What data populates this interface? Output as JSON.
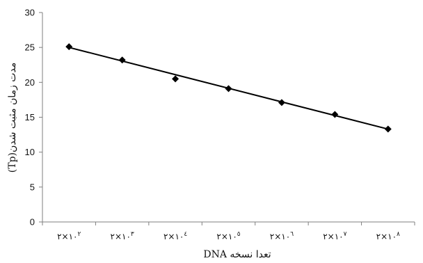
{
  "chart_data": {
    "type": "scatter",
    "xlabel": "تعدا نسخه DNA",
    "ylabel": "مدت زمان مثبت شدن(Tp)",
    "categories": [
      "۲×۱۰۲",
      "۲×۱۰۳",
      "۲×۱۰۴",
      "۲×۱۰۵",
      "۲×۱۰۶",
      "۲×۱۰۷",
      "۲×۱۰۸"
    ],
    "category_labels": [
      {
        "base": "۲×۱۰",
        "exp": "۲"
      },
      {
        "base": "۲×۱۰",
        "exp": "۳"
      },
      {
        "base": "۲×۱۰",
        "exp": "٤"
      },
      {
        "base": "۲×۱۰",
        "exp": "٥"
      },
      {
        "base": "۲×۱۰",
        "exp": "٦"
      },
      {
        "base": "۲×۱۰",
        "exp": "۷"
      },
      {
        "base": "۲×۱۰",
        "exp": "۸"
      }
    ],
    "values": [
      25.1,
      23.2,
      20.5,
      19.1,
      17.1,
      15.4,
      13.3
    ],
    "trendline": {
      "type": "linear",
      "start": 25.0,
      "end": 13.3
    },
    "ylim": [
      0,
      30
    ],
    "yticks": [
      0,
      5,
      10,
      15,
      20,
      25,
      30
    ],
    "grid": false,
    "legend": "none",
    "colors": {
      "axis": "#7f7f7f",
      "marker": "#000000",
      "trendline": "#000000"
    }
  }
}
